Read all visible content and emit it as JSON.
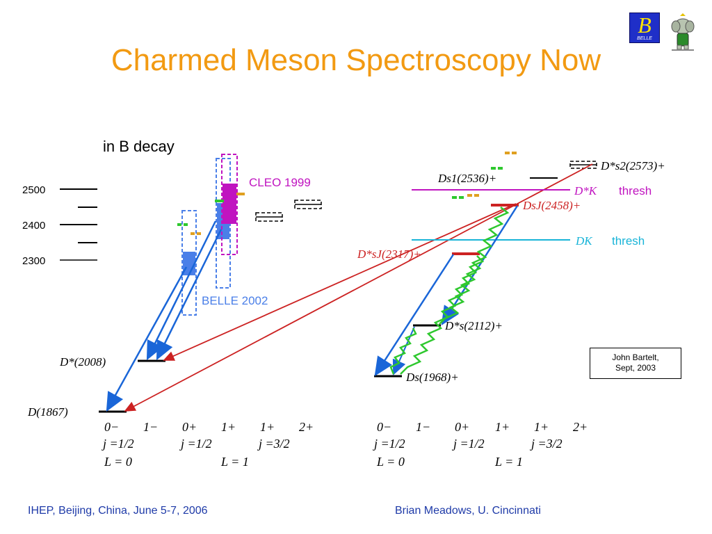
{
  "title": "Charmed Meson Spectroscopy Now",
  "logo": {
    "glyph": "B",
    "sub": "BELLE"
  },
  "decay_heading": "in B decay",
  "mass_scale": {
    "ticks": [
      "2500",
      "2400",
      "2300"
    ]
  },
  "experiments": {
    "cleo": "CLEO 1999",
    "belle": "BELLE 2002"
  },
  "left_states": {
    "d_star": "D*(2008)",
    "d": "D(1867)"
  },
  "right_states": {
    "ds2": "D*s2(2573)+",
    "ds1": "Ds1(2536)+",
    "dsj2458": "DsJ(2458)+",
    "dsj2317": "D*sJ(2317)+",
    "ds_star": "D*s(2112)+",
    "ds": "Ds(1968)+"
  },
  "thresholds": {
    "dstar_k": {
      "label": "D*K",
      "suffix": "thresh",
      "color": "#c014c0"
    },
    "dk": {
      "label": "DK",
      "suffix": "thresh",
      "color": "#18b4d8"
    }
  },
  "quantum_numbers": {
    "jp": [
      "0−",
      "1−",
      "0+",
      "1+",
      "1+",
      "2+"
    ],
    "j": [
      "j =1/2",
      "j =1/2",
      "j =3/2"
    ],
    "L": [
      "L = 0",
      "L = 1"
    ]
  },
  "credit": {
    "line1": "John Bartelt,",
    "line2": "Sept, 2003"
  },
  "footer": {
    "left": "IHEP, Beijing, China, June 5-7, 2006",
    "right": "Brian Meadows, U. Cincinnati"
  },
  "colors": {
    "title": "#f29a12",
    "footer": "#1e3aa8",
    "cleo": "#c014c0",
    "belle": "#4a7fe8",
    "arrow_red": "#cc2222",
    "arrow_blue": "#1a66d8",
    "zigzag": "#2ec82e",
    "orange_mark": "#e0a020"
  }
}
